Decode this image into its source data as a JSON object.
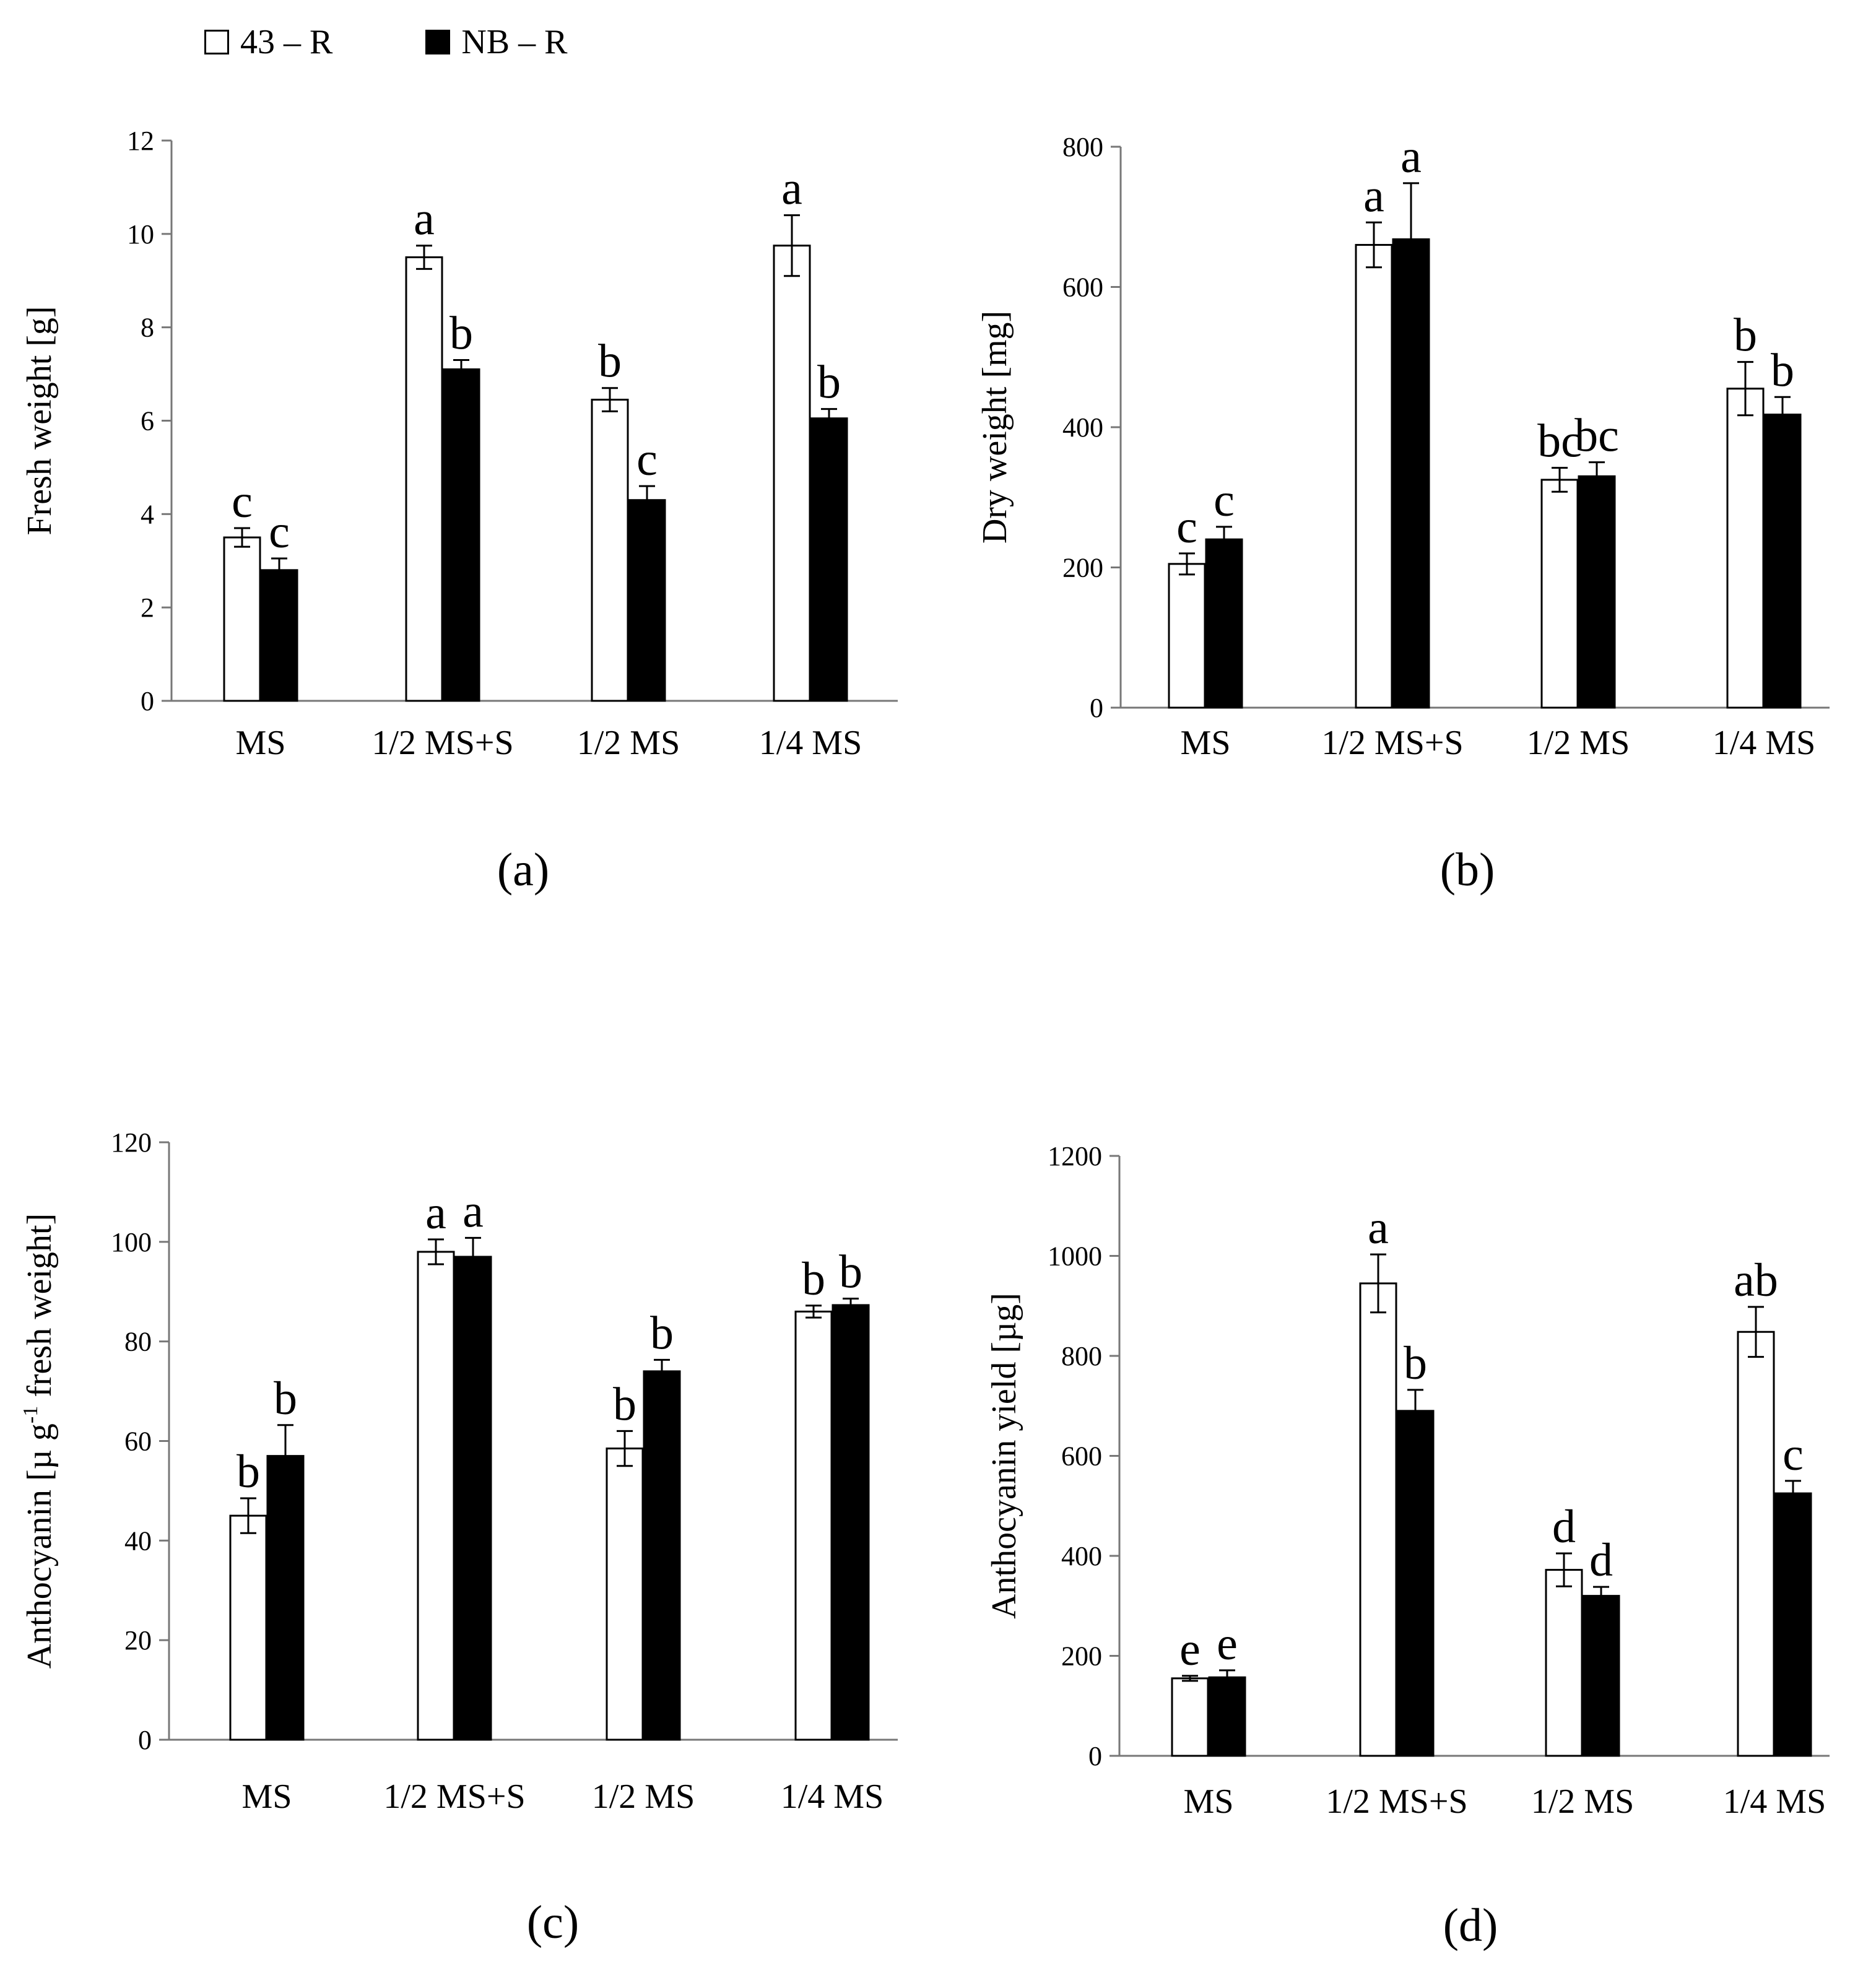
{
  "legend": {
    "series_0": "43 – R",
    "series_1": "NB – R",
    "colors": [
      "#ffffff",
      "#000000"
    ]
  },
  "chart_data": [
    {
      "type": "bar",
      "panel_label": "(a)",
      "ylabel": "Fresh weight [g]",
      "ylim": [
        0,
        12
      ],
      "ytick_labels": [
        "0",
        "2",
        "4",
        "6",
        "8",
        "10",
        "12"
      ],
      "categories": [
        "MS",
        "1/2 MS+S",
        "1/2 MS",
        "1/4 MS"
      ],
      "series": [
        {
          "name": "43 – R",
          "values": [
            3.5,
            9.5,
            6.45,
            9.75
          ],
          "errors": [
            0.2,
            0.25,
            0.25,
            0.65
          ],
          "letters": [
            "c",
            "a",
            "b",
            "a"
          ]
        },
        {
          "name": "NB – R",
          "values": [
            2.8,
            7.1,
            4.3,
            6.05
          ],
          "errors": [
            0.25,
            0.2,
            0.3,
            0.2
          ],
          "letters": [
            "c",
            "b",
            "c",
            "b"
          ]
        }
      ]
    },
    {
      "type": "bar",
      "panel_label": "(b)",
      "ylabel": "Dry weight [mg]",
      "ylim": [
        0,
        800
      ],
      "ytick_labels": [
        "0",
        "200",
        "400",
        "600",
        "800"
      ],
      "categories": [
        "MS",
        "1/2 MS+S",
        "1/2 MS",
        "1/4 MS"
      ],
      "series": [
        {
          "name": "43 – R",
          "values": [
            205,
            660,
            325,
            455
          ],
          "errors": [
            15,
            32,
            17,
            38
          ],
          "letters": [
            "c",
            "a",
            "bc",
            "b"
          ]
        },
        {
          "name": "NB – R",
          "values": [
            240,
            668,
            330,
            418
          ],
          "errors": [
            18,
            80,
            20,
            25
          ],
          "letters": [
            "c",
            "a",
            "bc",
            "b"
          ]
        }
      ]
    },
    {
      "type": "bar",
      "panel_label": "(c)",
      "ylabel": "Anthocyanin [μg g-1 fresh weight]",
      "ylabel_parts": {
        "before": "Anthocyanin [",
        "mu": "µ",
        "g": " g",
        "sup": "-1",
        "after": " fresh weight]"
      },
      "ylim": [
        0,
        120
      ],
      "ytick_labels": [
        "0",
        "20",
        "40",
        "60",
        "80",
        "100",
        "120"
      ],
      "categories": [
        "MS",
        "1/2 MS+S",
        "1/2 MS",
        "1/4 MS"
      ],
      "series": [
        {
          "name": "43 – R",
          "values": [
            45,
            98,
            58.5,
            86
          ],
          "errors": [
            3.5,
            2.5,
            3.5,
            1.2
          ],
          "letters": [
            "b",
            "a",
            "b",
            "b"
          ]
        },
        {
          "name": "NB – R",
          "values": [
            57,
            97,
            74,
            87.3
          ],
          "errors": [
            6.2,
            3.8,
            2.3,
            1.3
          ],
          "letters": [
            "b",
            "a",
            "b",
            "b"
          ]
        }
      ]
    },
    {
      "type": "bar",
      "panel_label": "(d)",
      "ylabel": "Anthocyanin yield [µg]",
      "ylim": [
        0,
        1200
      ],
      "ytick_labels": [
        "0",
        "200",
        "400",
        "600",
        "800",
        "1000",
        "1200"
      ],
      "categories": [
        "MS",
        "1/2 MS+S",
        "1/2 MS",
        "1/4 MS"
      ],
      "series": [
        {
          "name": "43 – R",
          "values": [
            155,
            945,
            372,
            848
          ],
          "errors": [
            5,
            58,
            33,
            50
          ],
          "letters": [
            "e",
            "a",
            "d",
            "ab"
          ]
        },
        {
          "name": "NB – R",
          "values": [
            157,
            690,
            320,
            525
          ],
          "errors": [
            14,
            42,
            18,
            25
          ],
          "letters": [
            "e",
            "b",
            "d",
            "c"
          ]
        }
      ]
    }
  ]
}
